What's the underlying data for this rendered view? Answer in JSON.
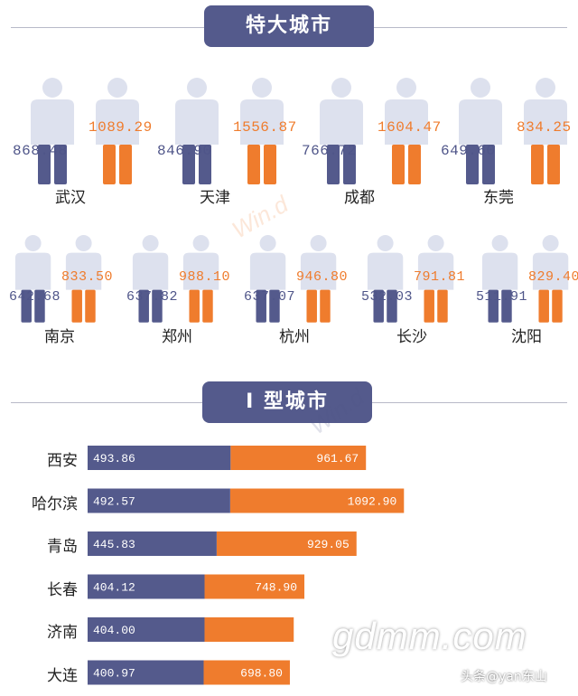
{
  "colors": {
    "purple": "#545a8c",
    "orange": "#ef7c2d",
    "figure": "#dde1ee"
  },
  "section1": {
    "title": "特大城市"
  },
  "section2": {
    "title": "I 型城市"
  },
  "mega_cities": [
    {
      "name": "武汉",
      "a": "868.48",
      "b": "1089.29"
    },
    {
      "name": "天津",
      "a": "846.90",
      "b": "1556.87"
    },
    {
      "name": "成都",
      "a": "766.72",
      "b": "1604.47"
    },
    {
      "name": "东莞",
      "a": "649.60",
      "b": "834.25"
    },
    {
      "name": "南京",
      "a": "642.68",
      "b": "833.50"
    },
    {
      "name": "郑州",
      "a": "637.82",
      "b": "988.10"
    },
    {
      "name": "杭州",
      "a": "637.07",
      "b": "946.80"
    },
    {
      "name": "长沙",
      "a": "532.03",
      "b": "791.81"
    },
    {
      "name": "沈阳",
      "a": "511.91",
      "b": "829.40"
    }
  ],
  "chart_data": {
    "type": "bar",
    "orientation": "horizontal",
    "stacked": true,
    "categories": [
      "西安",
      "哈尔滨",
      "青岛",
      "长春",
      "济南",
      "大连"
    ],
    "series": [
      {
        "values": [
          493.86,
          492.57,
          445.83,
          404.12,
          404.0,
          400.97
        ],
        "labels": [
          "493.86",
          "492.57",
          "445.83",
          "404.12",
          "404.00",
          "400.97"
        ],
        "color": "#545a8c"
      },
      {
        "values": [
          961.67,
          1092.9,
          929.05,
          748.9,
          712.13,
          698.8
        ],
        "labels": [
          "961.67",
          "1092.90",
          "929.05",
          "748.90",
          "",
          "698.80"
        ],
        "color": "#ef7c2d"
      }
    ]
  },
  "watermarks": {
    "main": "gdmm.com",
    "credit": "头条@yan东山",
    "faint": "Win.d"
  }
}
